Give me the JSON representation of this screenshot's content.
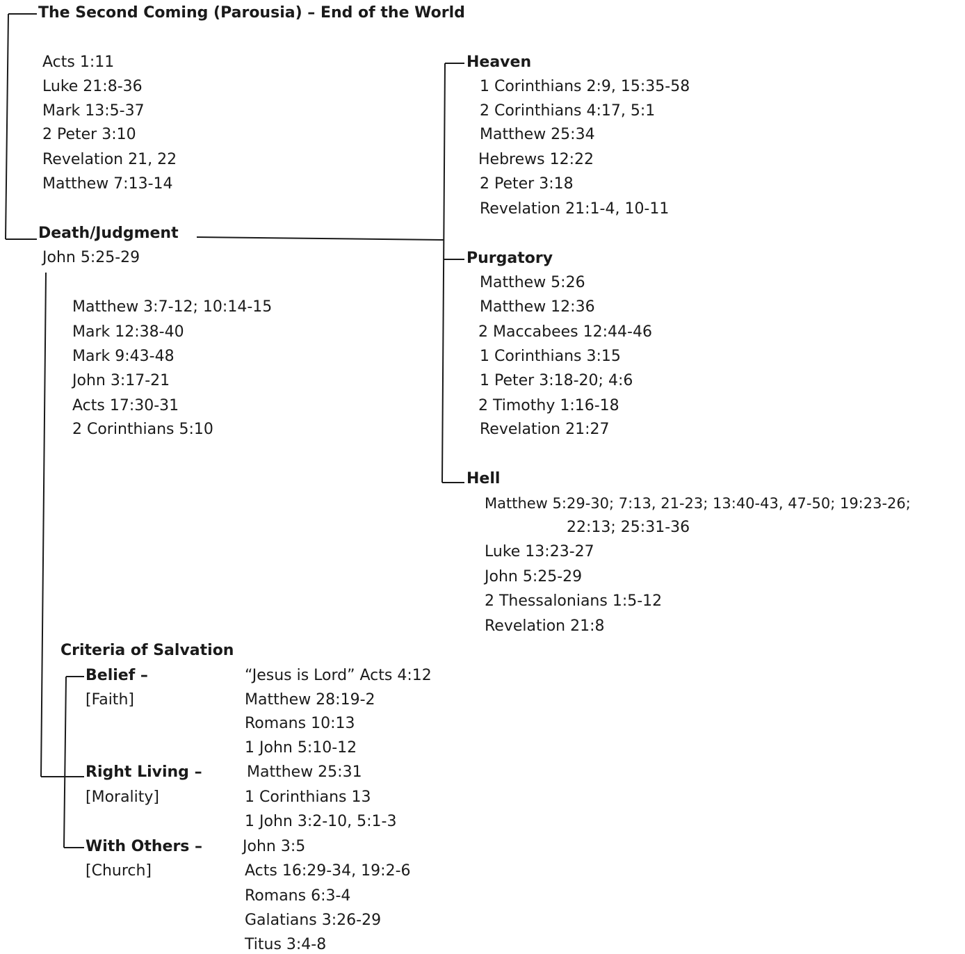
{
  "second_coming": {
    "title": "The Second Coming (Parousia) – End of the World",
    "refs": [
      "Acts 1:11",
      "Luke 21:8-36",
      "Mark 13:5-37",
      "2 Peter 3:10",
      "Revelation 21, 22",
      "Matthew 7:13-14"
    ]
  },
  "death_judgment": {
    "title": "Death/Judgment",
    "main_ref": "John 5:25-29",
    "refs": [
      "Matthew 3:7-12; 10:14-15",
      "Mark 12:38-40",
      "Mark 9:43-48",
      "John 3:17-21",
      "Acts 17:30-31",
      "2 Corinthians 5:10"
    ]
  },
  "heaven": {
    "title": "Heaven",
    "refs": [
      "1 Corinthians 2:9, 15:35-58",
      "2 Corinthians 4:17, 5:1",
      "Matthew 25:34",
      "Hebrews 12:22",
      "2 Peter 3:18",
      "Revelation 21:1-4, 10-11"
    ]
  },
  "purgatory": {
    "title": "Purgatory",
    "refs": [
      "Matthew 5:26",
      "Matthew 12:36",
      "2 Maccabees 12:44-46",
      "1 Corinthians 3:15",
      "1 Peter 3:18-20; 4:6",
      "2 Timothy 1:16-18",
      "Revelation 21:27"
    ]
  },
  "hell": {
    "title": "Hell",
    "refs": [
      "Matthew 5:29-30; 7:13, 21-23; 13:40-43, 47-50; 19:23-26;",
      "22:13; 25:31-36",
      "Luke 13:23-27",
      "John 5:25-29",
      "2 Thessalonians 1:5-12",
      "Revelation 21:8"
    ]
  },
  "criteria": {
    "title": "Criteria of Salvation",
    "belief": {
      "title": "Belief –",
      "sub": "[Faith]",
      "refs": [
        "“Jesus is Lord” Acts 4:12",
        "Matthew 28:19-2",
        "Romans 10:13",
        "1 John 5:10-12"
      ]
    },
    "right_living": {
      "title": "Right Living –",
      "sub": "[Morality]",
      "refs": [
        "Matthew 25:31",
        "1 Corinthians 13",
        "1 John 3:2-10, 5:1-3"
      ]
    },
    "with_others": {
      "title": "With Others –",
      "sub": "[Church]",
      "refs": [
        "John 3:5",
        "Acts 16:29-34, 19:2-6",
        "Romans 6:3-4",
        "Galatians 3:26-29",
        "Titus 3:4-8"
      ]
    }
  }
}
